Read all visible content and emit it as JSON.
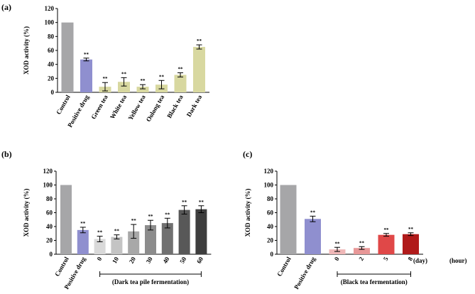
{
  "chart_data": [
    {
      "type": "bar",
      "panel_label": "(a)",
      "ylabel": "XOD activity (%)",
      "ylim": [
        0,
        120
      ],
      "yticks": [
        0,
        20,
        40,
        60,
        80,
        100,
        120
      ],
      "categories": [
        "Control",
        "Positive drug",
        "Green tea",
        "White tea",
        "Yellow tea",
        "Oolong tea",
        "Black tea",
        "Dark tea"
      ],
      "values": [
        100,
        47,
        8,
        15,
        8,
        11,
        25,
        65
      ],
      "errors": [
        0,
        2,
        6,
        6,
        3,
        6,
        3,
        3
      ],
      "significance": [
        "",
        "**",
        "**",
        "**",
        "**",
        "**",
        "**",
        "**"
      ],
      "colors": [
        "#a6a6a8",
        "#8f8fcf",
        "#d8d8a0",
        "#d8d8a0",
        "#d8d8a0",
        "#d8d8a0",
        "#d8d8a0",
        "#d8d8a0"
      ]
    },
    {
      "type": "bar",
      "panel_label": "(b)",
      "ylabel": "XOD activity (%)",
      "ylim": [
        0,
        120
      ],
      "yticks": [
        0,
        20,
        40,
        60,
        80,
        100,
        120
      ],
      "categories": [
        "Control",
        "Positive drug",
        "0",
        "10",
        "20",
        "30",
        "40",
        "50",
        "60"
      ],
      "values": [
        100,
        35,
        22,
        25,
        33,
        42,
        45,
        64,
        65
      ],
      "errors": [
        0,
        4,
        4,
        3,
        10,
        7,
        7,
        6,
        5
      ],
      "significance": [
        "",
        "**",
        "**",
        "**",
        "**",
        "**",
        "**",
        "**",
        "**"
      ],
      "colors": [
        "#a6a6a8",
        "#8f8fcf",
        "#d9d9d9",
        "#c4c4c4",
        "#a8a8a8",
        "#8c8c8c",
        "#707070",
        "#585858",
        "#3d3d3d"
      ],
      "unit_label": "(day)",
      "group_label": "(Dark tea pile fermentation)"
    },
    {
      "type": "bar",
      "panel_label": "(c)",
      "ylabel": "XOD activity (%)",
      "ylim": [
        0,
        120
      ],
      "yticks": [
        0,
        20,
        40,
        60,
        80,
        100,
        120
      ],
      "categories": [
        "Control",
        "Positive drug",
        "0",
        "2",
        "5",
        "8"
      ],
      "values": [
        100,
        51,
        7,
        9,
        28,
        29
      ],
      "errors": [
        0,
        4,
        3,
        2,
        2,
        2
      ],
      "significance": [
        "",
        "**",
        "**",
        "**",
        "**",
        "**"
      ],
      "colors": [
        "#a6a6a8",
        "#8f8fcf",
        "#f0b8b8",
        "#e89898",
        "#e04848",
        "#b01a1a"
      ],
      "unit_label": "(hour)",
      "group_label": "(Black tea fermentation)"
    }
  ]
}
